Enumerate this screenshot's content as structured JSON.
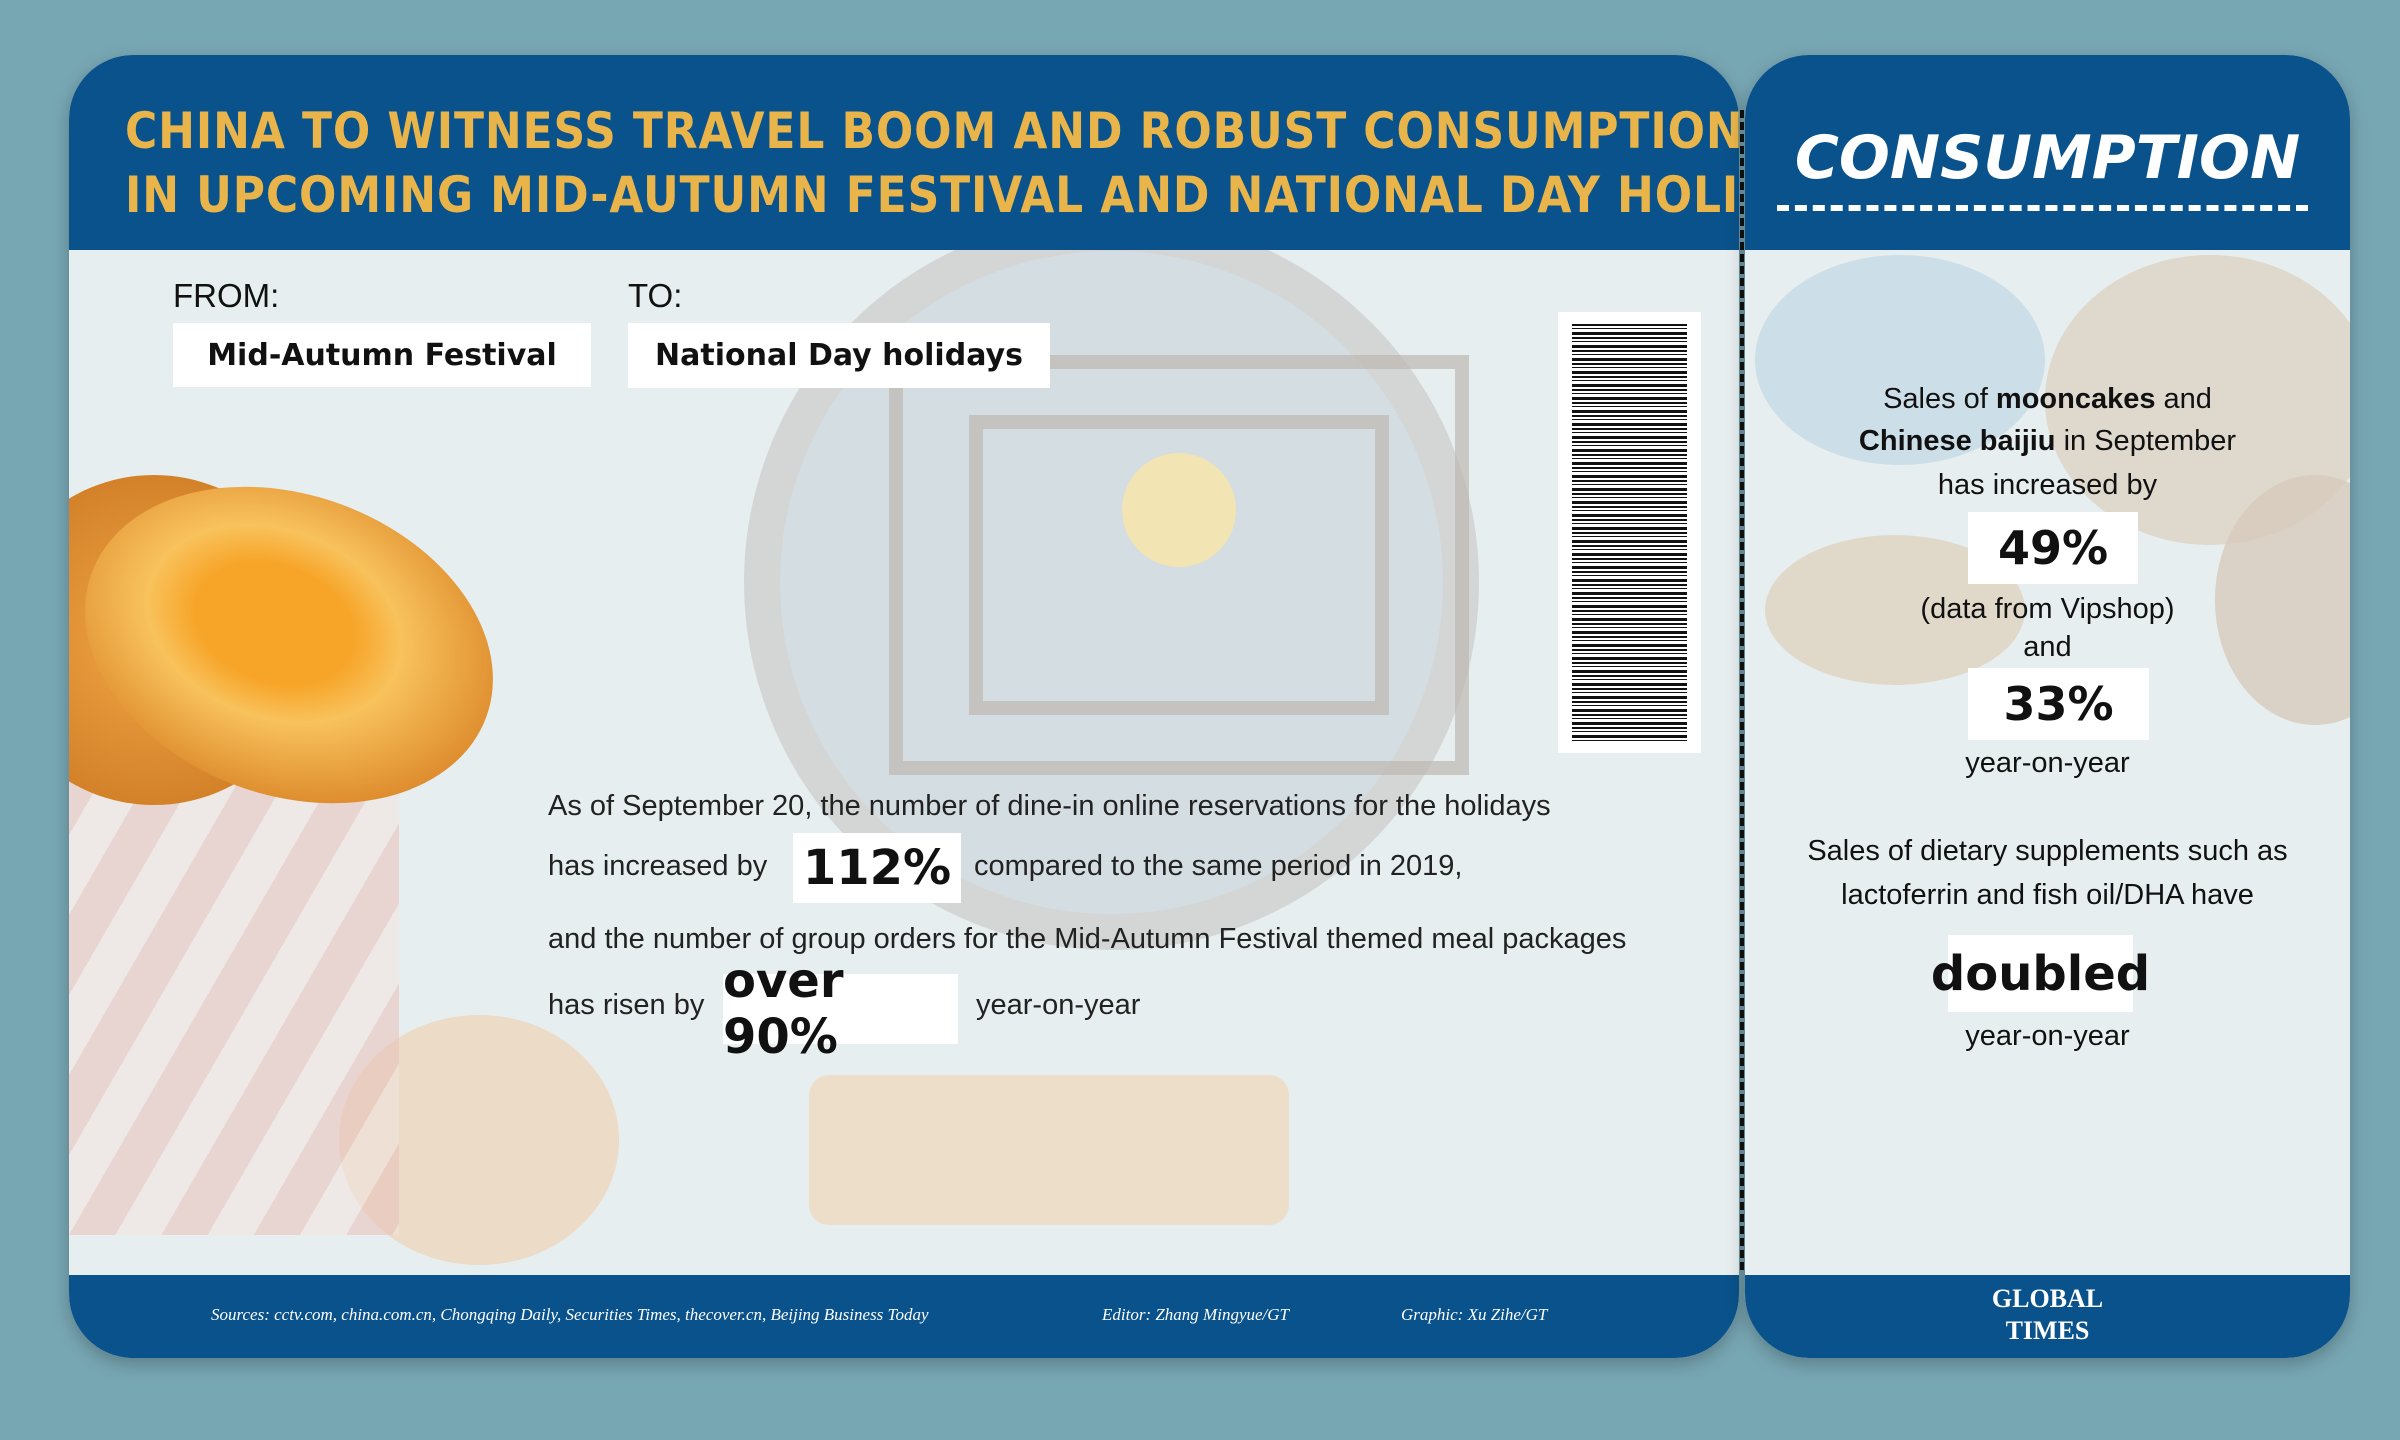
{
  "header": {
    "title_line1": "CHINA TO WITNESS TRAVEL BOOM AND ROBUST CONSUMPTION",
    "title_line2": "IN UPCOMING MID-AUTUMN FESTIVAL AND NATIONAL DAY HOLIDAYS"
  },
  "ticket": {
    "from_label": "FROM:",
    "from_value": "Mid-Autumn Festival",
    "to_label": "TO:",
    "to_value": "National Day holidays"
  },
  "body": {
    "line1": "As of September 20, the number of dine-in online reservations for the holidays",
    "line2_a": "has increased by",
    "stat1": "112%",
    "line2_b": "compared to the same period in 2019,",
    "line3": "and the number of group orders for the Mid-Autumn Festival themed meal packages",
    "line4_a": "has risen by",
    "stat2": "over 90%",
    "line4_b": "year-on-year"
  },
  "footer": {
    "sources": "Sources: cctv.com, china.com.cn, Chongqing Daily, Securities Times, thecover.cn, Beijing Business Today",
    "editor": "Editor: Zhang Mingyue/GT",
    "graphic": "Graphic: Xu Zihe/GT"
  },
  "consumption": {
    "title": "CONSUMPTION",
    "t1_a": "Sales of ",
    "t1_b": "mooncakes",
    "t1_c": " and",
    "t2_a": "Chinese baijiu",
    "t2_b": " in September",
    "t3": "has increased by",
    "stat1": "49%",
    "t4": "(data from Vipshop)",
    "t5": "and",
    "stat2": "33%",
    "t6": "year-on-year",
    "t7": "Sales of dietary supplements such as",
    "t8": "lactoferrin and fish oil/DHA have",
    "stat3": "doubled",
    "t9": "year-on-year"
  },
  "logo": {
    "text_line1": "GLOBAL",
    "text_line2": "TIMES"
  },
  "colors": {
    "header_blue": "#0a528b",
    "title_gold": "#e9b54a",
    "background": "#78a7b4"
  }
}
